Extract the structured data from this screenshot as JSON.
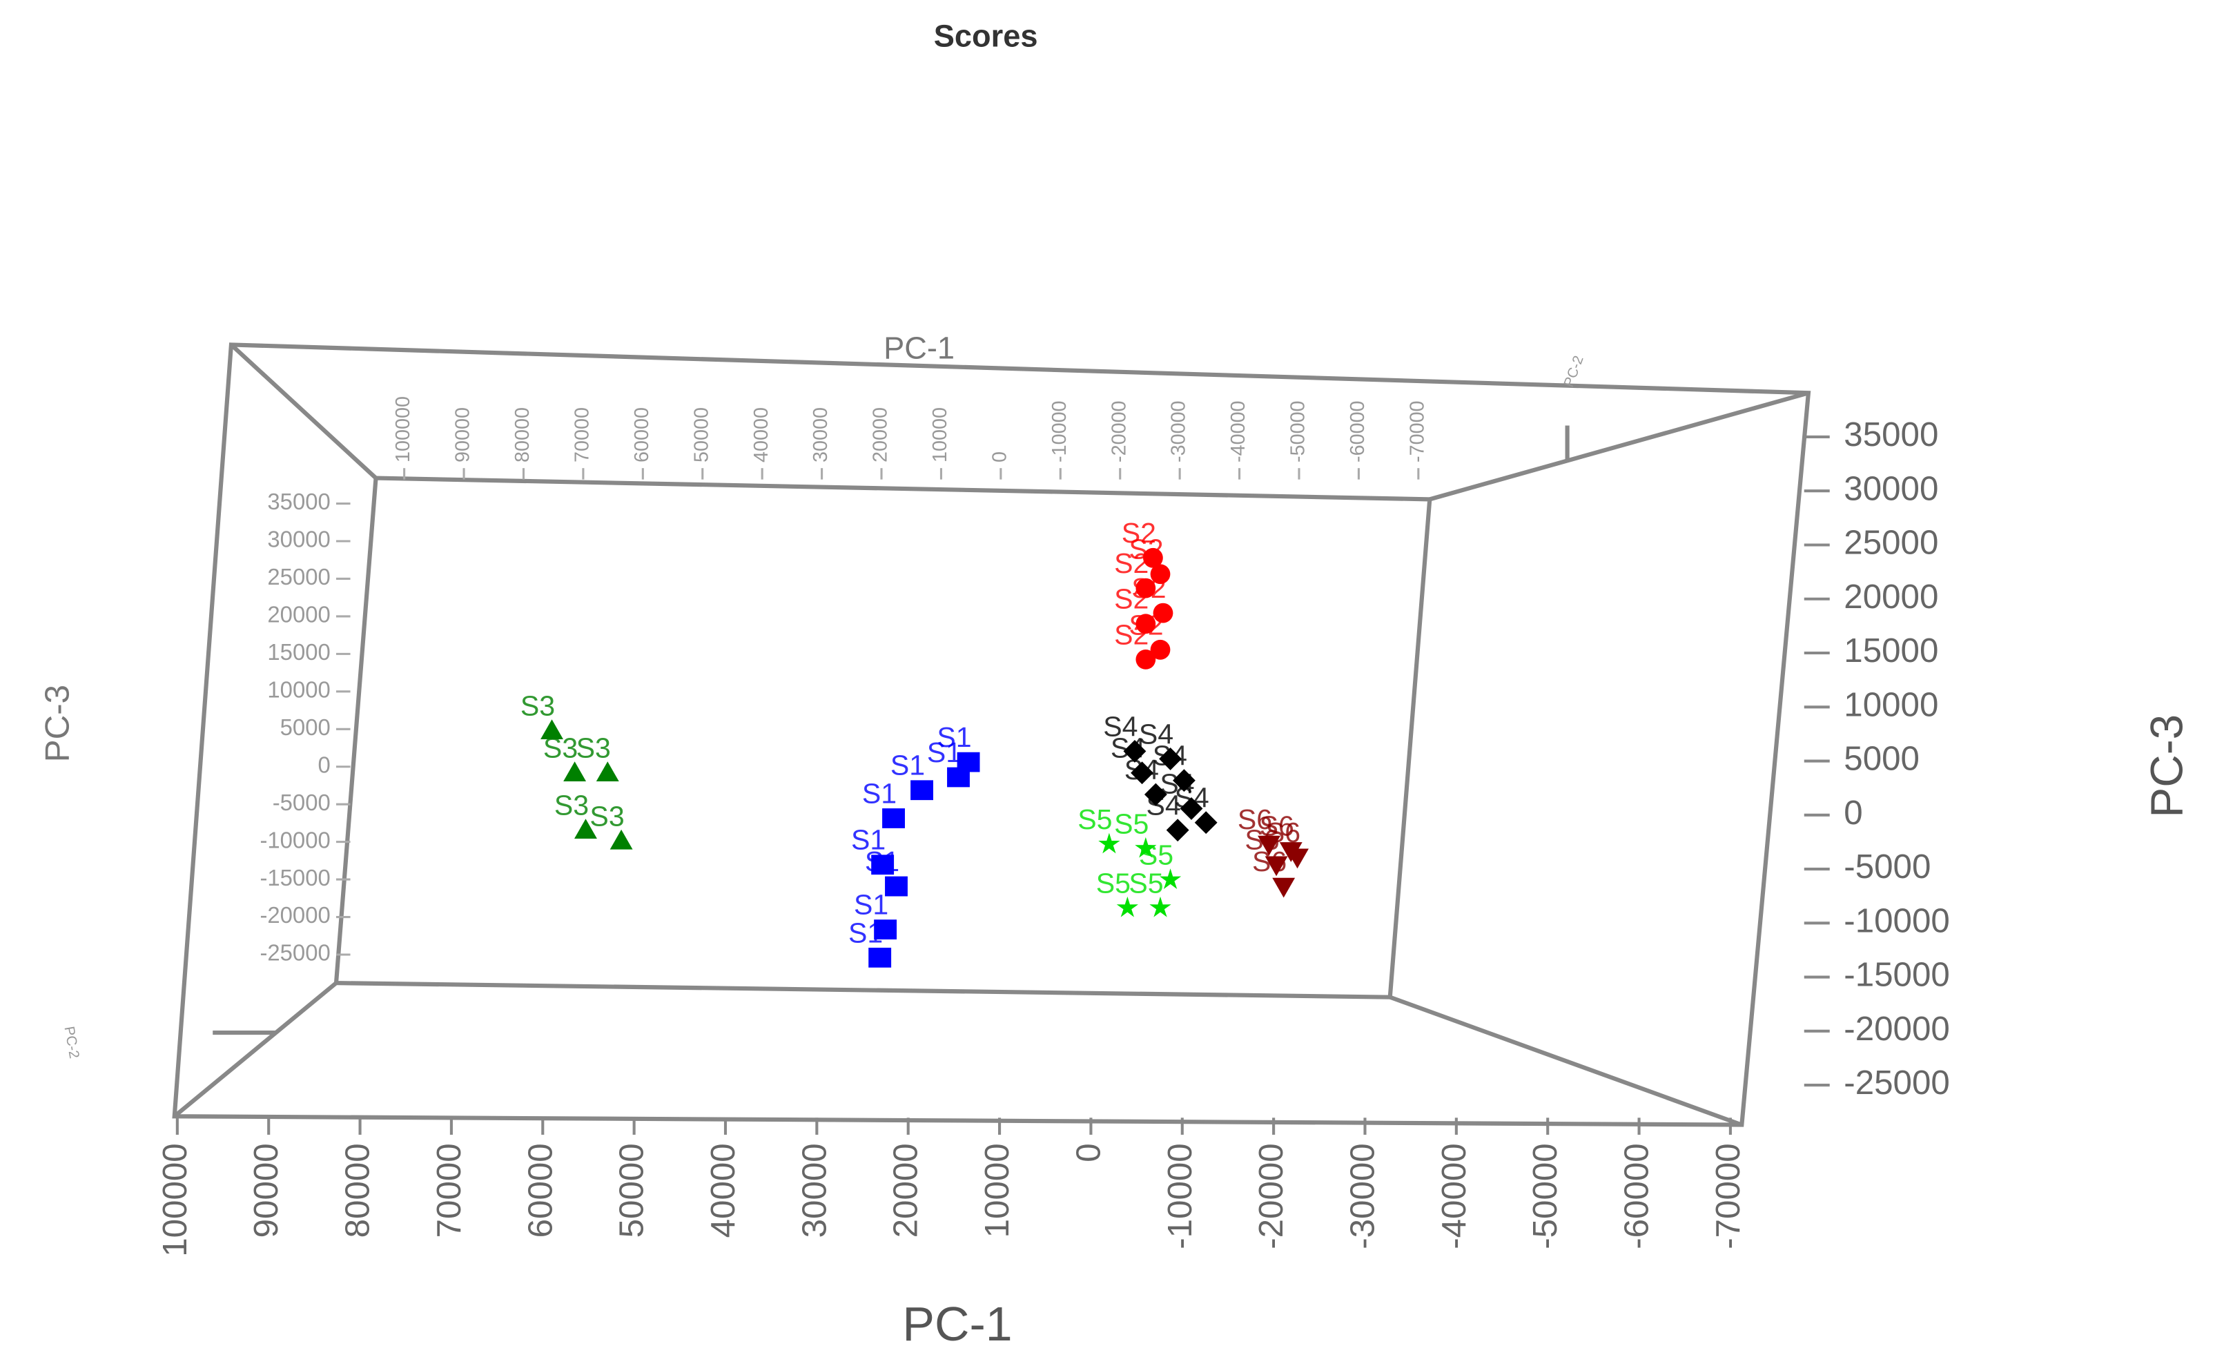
{
  "chart_data": {
    "type": "scatter3d",
    "title": "Scores",
    "xlabel": "PC-1",
    "ylabel": "PC-3",
    "zlabel": "PC-2",
    "xlim": [
      100000,
      -70000
    ],
    "ylim": [
      -25000,
      35000
    ],
    "xticks": [
      100000,
      90000,
      80000,
      70000,
      60000,
      50000,
      40000,
      30000,
      20000,
      10000,
      0,
      -10000,
      -20000,
      -30000,
      -40000,
      -50000,
      -60000,
      -70000
    ],
    "yticks": [
      -25000,
      -20000,
      -15000,
      -10000,
      -5000,
      0,
      5000,
      10000,
      15000,
      20000,
      25000,
      30000,
      35000
    ],
    "series": [
      {
        "name": "S3",
        "color": "#008000",
        "marker": "triangle",
        "x": [
          59000,
          56500,
          52900,
          55300,
          51400
        ],
        "y": [
          7800,
          3900,
          3900,
          -1400,
          -2400
        ]
      },
      {
        "name": "S1",
        "color": "#0000ff",
        "marker": "square",
        "x": [
          13400,
          14500,
          18500,
          21600,
          22800,
          21300,
          22500,
          23100
        ],
        "y": [
          4900,
          3500,
          2300,
          -300,
          -4600,
          -6600,
          -10600,
          -13200
        ]
      },
      {
        "name": "S2",
        "color": "#ff0000",
        "marker": "circle",
        "x": [
          -6800,
          -7600,
          -6000,
          -7900,
          -6000,
          -7600,
          -6000
        ],
        "y": [
          23800,
          22300,
          21000,
          18700,
          17700,
          15300,
          14400
        ]
      },
      {
        "name": "S4",
        "color": "#000000",
        "marker": "diamond",
        "x": [
          -4800,
          -8700,
          -5600,
          -10200,
          -7100,
          -11000,
          -12600,
          -9500
        ],
        "y": [
          5900,
          5200,
          3900,
          3200,
          1900,
          600,
          -700,
          -1400
        ]
      },
      {
        "name": "S5",
        "color": "#00e000",
        "marker": "star",
        "x": [
          -2000,
          -6000,
          -8700,
          -4000,
          -7600
        ],
        "y": [
          -2700,
          -3100,
          -6000,
          -8600,
          -8600
        ]
      },
      {
        "name": "S6",
        "color": "#8b0000",
        "marker": "down-triangle",
        "x": [
          -19500,
          -21900,
          -20300,
          -22600,
          -21100
        ],
        "y": [
          -2700,
          -3300,
          -4600,
          -3900,
          -6600
        ]
      }
    ]
  }
}
